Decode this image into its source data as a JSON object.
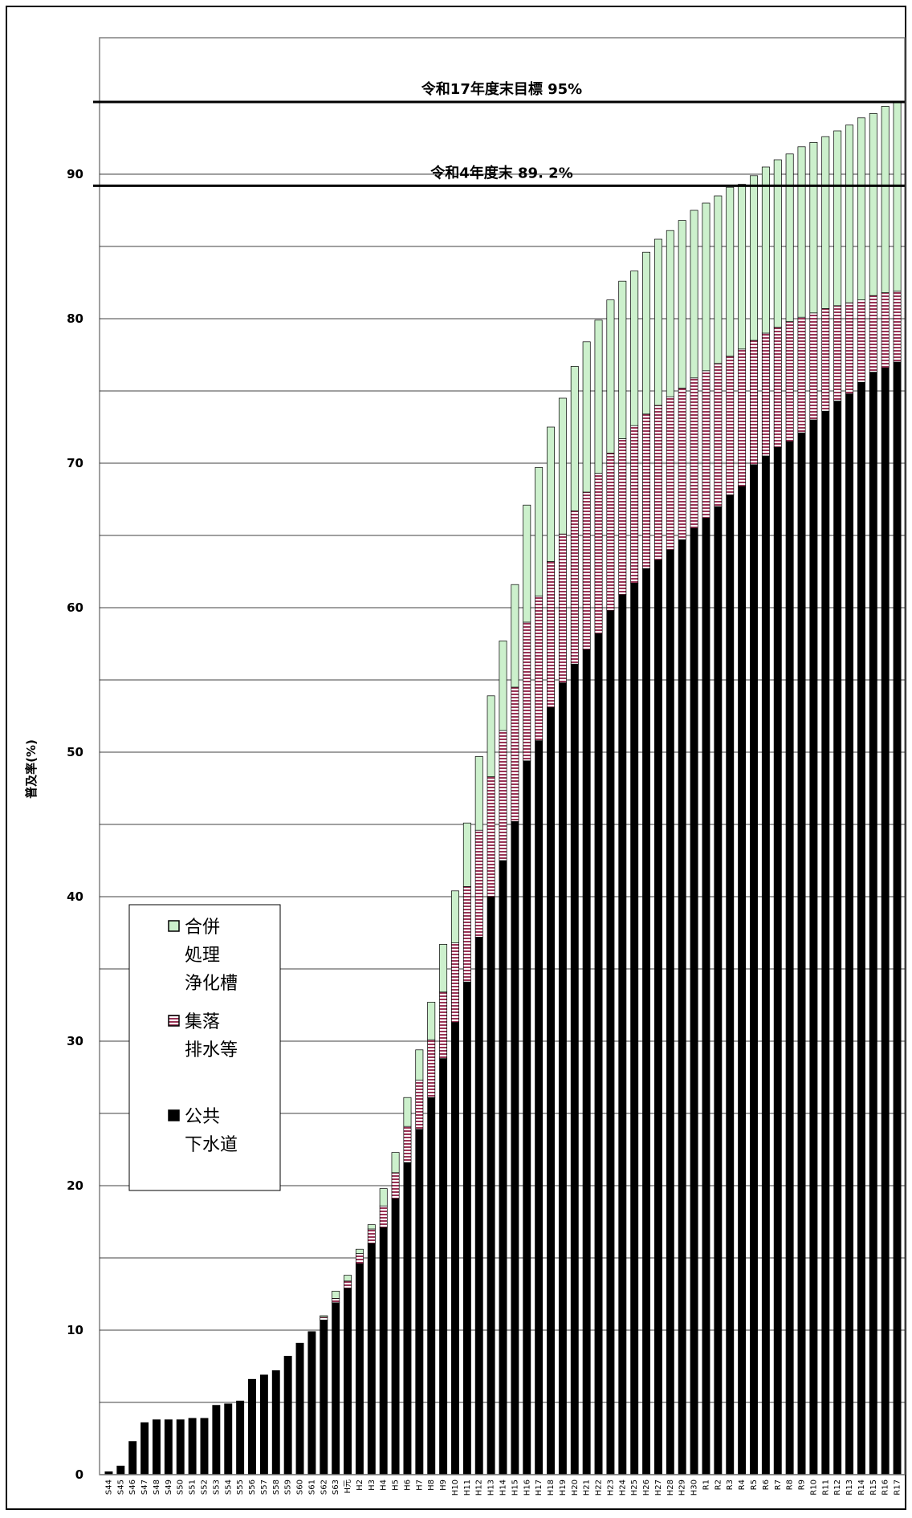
{
  "chart_data": {
    "type": "bar",
    "stacked": true,
    "ylabel": "普及率(%)",
    "ylim": [
      0,
      95
    ],
    "yticks": [
      0,
      10,
      20,
      30,
      40,
      50,
      60,
      70,
      80,
      90
    ],
    "grid": true,
    "legend_position": "left-middle",
    "categories": [
      "S44",
      "S45",
      "S46",
      "S47",
      "S48",
      "S49",
      "S50",
      "S51",
      "S52",
      "S53",
      "S54",
      "S55",
      "S56",
      "S57",
      "S58",
      "S59",
      "S60",
      "S61",
      "S62",
      "S63",
      "H元",
      "H2",
      "H3",
      "H4",
      "H5",
      "H6",
      "H7",
      "H8",
      "H9",
      "H10",
      "H11",
      "H12",
      "H13",
      "H14",
      "H15",
      "H16",
      "H17",
      "H18",
      "H19",
      "H20",
      "H21",
      "H22",
      "H23",
      "H24",
      "H25",
      "H26",
      "H27",
      "H28",
      "H29",
      "H30",
      "R1",
      "R2",
      "R3",
      "R4",
      "R5",
      "R6",
      "R7",
      "R8",
      "R9",
      "R10",
      "R11",
      "R12",
      "R13",
      "R14",
      "R15",
      "R16",
      "R17"
    ],
    "series": [
      {
        "name": "公共下水道",
        "color": "#000000",
        "pattern": "solid",
        "values": [
          0.2,
          0.6,
          2.3,
          3.6,
          3.8,
          3.8,
          3.8,
          3.9,
          3.9,
          4.8,
          4.9,
          5.1,
          6.6,
          6.9,
          7.2,
          8.2,
          9.1,
          9.9,
          10.7,
          11.9,
          12.9,
          14.6,
          16.0,
          17.1,
          19.1,
          21.6,
          23.9,
          26.1,
          28.8,
          31.3,
          34.1,
          37.2,
          40.0,
          42.5,
          45.2,
          49.4,
          50.8,
          53.1,
          54.8,
          56.1,
          57.1,
          58.2,
          59.8,
          60.9,
          61.7,
          62.7,
          63.3,
          64.0,
          64.7,
          65.5,
          66.2,
          67.0,
          67.8,
          68.4,
          69.9,
          70.5,
          71.1,
          71.5,
          72.1,
          73.0,
          73.6,
          74.3,
          74.8,
          75.6,
          76.3,
          76.6,
          77.0
        ]
      },
      {
        "name": "集落排水等",
        "color": "#993355",
        "pattern": "hatched",
        "values": [
          0,
          0,
          0,
          0,
          0,
          0,
          0,
          0,
          0,
          0,
          0,
          0,
          0,
          0,
          0,
          0,
          0,
          0,
          0.2,
          0.3,
          0.5,
          0.7,
          1.0,
          1.5,
          1.8,
          2.5,
          3.4,
          4.0,
          4.6,
          5.5,
          6.6,
          7.4,
          8.3,
          9.0,
          9.3,
          9.6,
          10.0,
          10.1,
          10.3,
          10.6,
          10.9,
          11.1,
          10.9,
          10.8,
          10.9,
          10.7,
          10.7,
          10.6,
          10.5,
          10.4,
          10.2,
          9.9,
          9.6,
          9.5,
          8.6,
          8.5,
          8.3,
          8.3,
          8.0,
          7.4,
          7.1,
          6.6,
          6.3,
          5.7,
          5.3,
          5.2,
          4.9
        ]
      },
      {
        "name": "合併処理浄化槽",
        "color": "#ccf0cc",
        "pattern": "solid",
        "values": [
          0,
          0,
          0,
          0,
          0,
          0,
          0,
          0,
          0,
          0,
          0,
          0,
          0,
          0,
          0,
          0,
          0,
          0,
          0.1,
          0.5,
          0.4,
          0.3,
          0.3,
          1.2,
          1.4,
          2.0,
          2.1,
          2.6,
          3.3,
          3.6,
          4.4,
          5.1,
          5.6,
          6.2,
          7.1,
          8.1,
          8.9,
          9.3,
          9.4,
          10.0,
          10.4,
          10.6,
          10.6,
          10.9,
          10.7,
          11.2,
          11.5,
          11.5,
          11.6,
          11.6,
          11.6,
          11.6,
          11.7,
          11.4,
          11.4,
          11.5,
          11.6,
          11.6,
          11.8,
          11.8,
          11.9,
          12.1,
          12.3,
          12.6,
          12.6,
          12.9,
          13.1
        ]
      }
    ],
    "reference_lines": [
      {
        "value": 95,
        "label": "令和17年度末目標  95%"
      },
      {
        "value": 89.2,
        "label": "令和4年度末  89. 2%"
      }
    ],
    "legend": [
      {
        "lines": [
          "合併",
          "処理",
          "浄化槽"
        ],
        "series": "合併処理浄化槽"
      },
      {
        "lines": [
          "集落",
          "排水等"
        ],
        "series": "集落排水等"
      },
      {
        "lines": [
          "公共",
          "下水道"
        ],
        "series": "公共下水道"
      }
    ]
  }
}
